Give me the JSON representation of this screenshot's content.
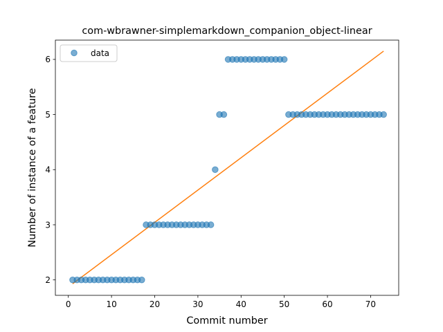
{
  "chart_data": {
    "type": "scatter",
    "title": "com-wbrawner-simplemarkdown_companion_object-linear",
    "xlabel": "Commit number",
    "ylabel": "Number of instance of a feature",
    "xlim": [
      -3,
      76.5
    ],
    "ylim": [
      1.72,
      6.35
    ],
    "xticks": [
      0,
      10,
      20,
      30,
      40,
      50,
      60,
      70
    ],
    "yticks": [
      2,
      3,
      4,
      5,
      6
    ],
    "legend": {
      "position": "top-left",
      "entries": [
        "data"
      ]
    },
    "colors": {
      "data": "#1f77b4",
      "fit": "#ff7f0e"
    },
    "series": [
      {
        "name": "data",
        "kind": "scatter",
        "x": [
          1,
          2,
          3,
          4,
          5,
          6,
          7,
          8,
          9,
          10,
          11,
          12,
          13,
          14,
          15,
          16,
          17,
          18,
          19,
          20,
          21,
          22,
          23,
          24,
          25,
          26,
          27,
          28,
          29,
          30,
          31,
          32,
          33,
          34,
          35,
          36,
          37,
          38,
          39,
          40,
          41,
          42,
          43,
          44,
          45,
          46,
          47,
          48,
          49,
          50,
          51,
          52,
          53,
          54,
          55,
          56,
          57,
          58,
          59,
          60,
          61,
          62,
          63,
          64,
          65,
          66,
          67,
          68,
          69,
          70,
          71,
          72,
          73
        ],
        "y": [
          2,
          2,
          2,
          2,
          2,
          2,
          2,
          2,
          2,
          2,
          2,
          2,
          2,
          2,
          2,
          2,
          2,
          3,
          3,
          3,
          3,
          3,
          3,
          3,
          3,
          3,
          3,
          3,
          3,
          3,
          3,
          3,
          3,
          4,
          5,
          5,
          6,
          6,
          6,
          6,
          6,
          6,
          6,
          6,
          6,
          6,
          6,
          6,
          6,
          6,
          5,
          5,
          5,
          5,
          5,
          5,
          5,
          5,
          5,
          5,
          5,
          5,
          5,
          5,
          5,
          5,
          5,
          5,
          5,
          5,
          5,
          5,
          5
        ]
      },
      {
        "name": "linear fit",
        "kind": "line",
        "x": [
          1,
          73
        ],
        "y": [
          1.93,
          6.15
        ]
      }
    ]
  }
}
